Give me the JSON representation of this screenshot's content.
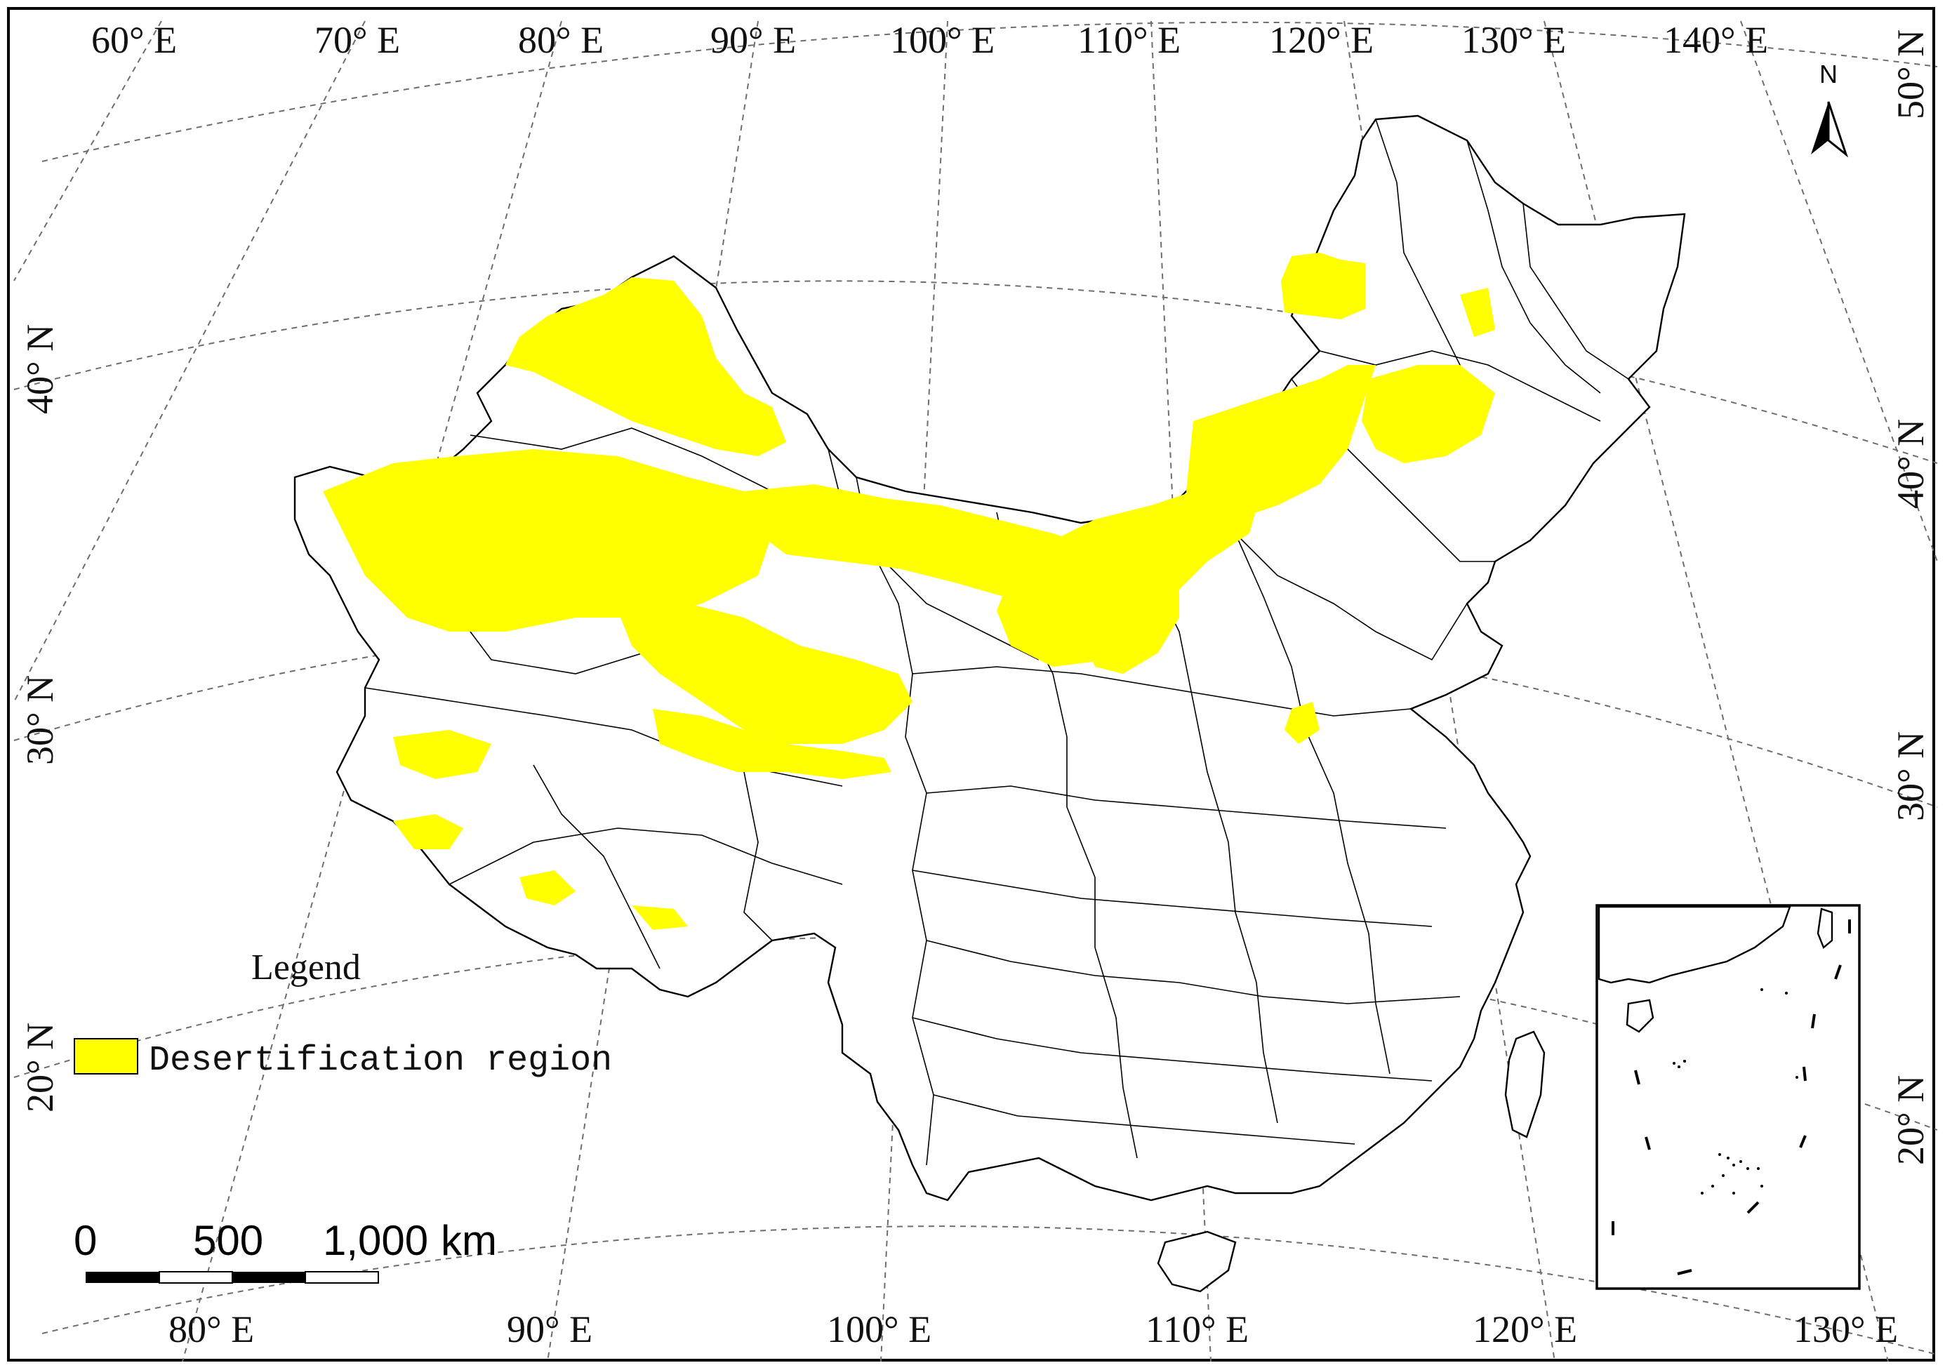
{
  "map": {
    "top_longitude_labels": [
      "60° E",
      "70° E",
      "80° E",
      "90° E",
      "100° E",
      "110° E",
      "120° E",
      "130° E",
      "140° E"
    ],
    "bottom_longitude_labels": [
      "80° E",
      "90° E",
      "100° E",
      "110° E",
      "120° E",
      "130° E"
    ],
    "left_latitude_labels": [
      "40° N",
      "30° N",
      "20° N"
    ],
    "right_latitude_labels": [
      "50° N",
      "40° N",
      "30° N",
      "20° N"
    ],
    "north_arrow_label": "N"
  },
  "legend": {
    "title": "Legend",
    "items": [
      {
        "label": "Desertification region",
        "color": "#ffff00"
      }
    ]
  },
  "scale_bar": {
    "labels": [
      "0",
      "500",
      "1,000"
    ],
    "unit": "km"
  },
  "colors": {
    "desertification": "#ffff00",
    "boundary": "#000000",
    "graticule": "#6e6e6e"
  }
}
